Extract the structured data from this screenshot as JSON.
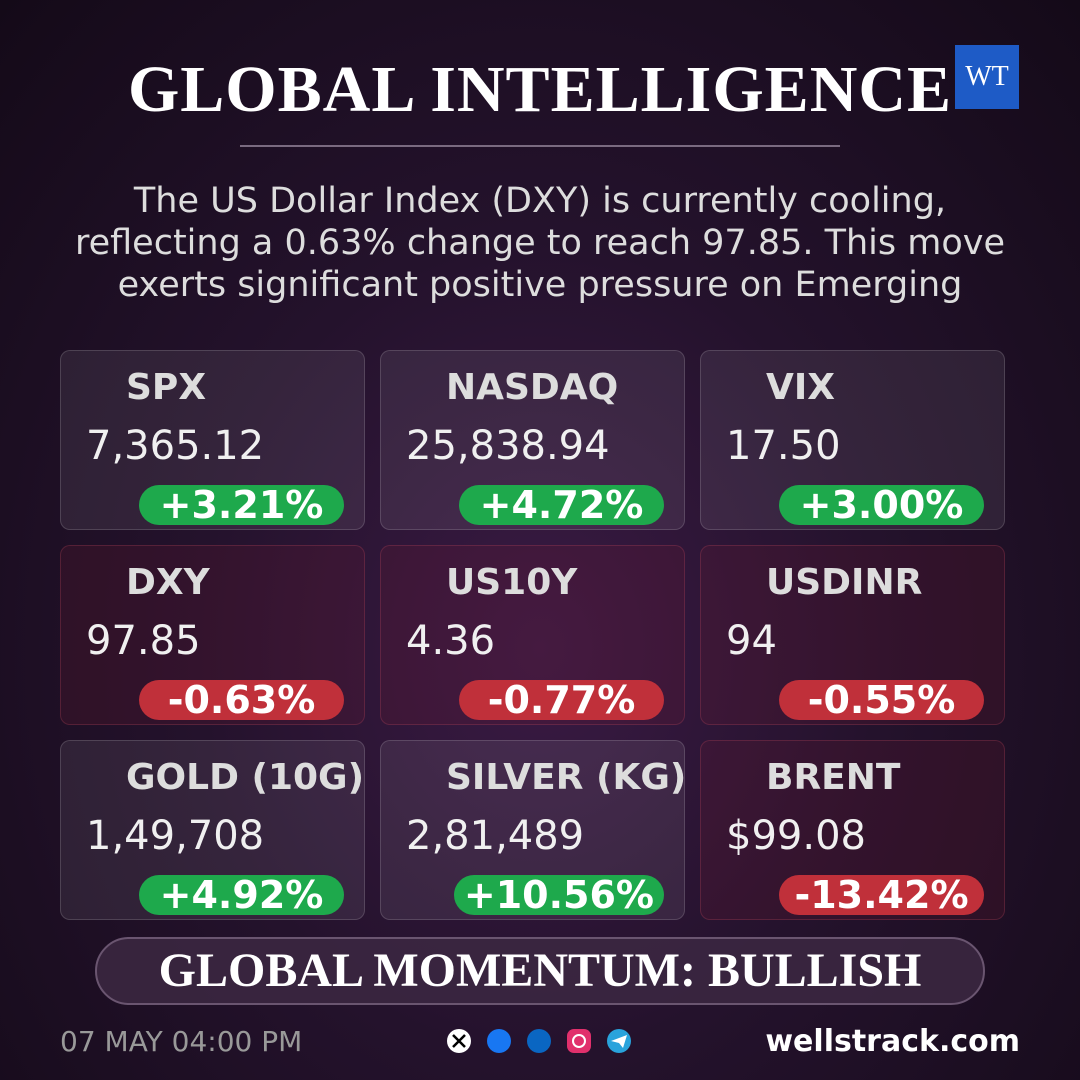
{
  "header": {
    "title": "GLOBAL INTELLIGENCE",
    "logo": "WT"
  },
  "summary": "The US Dollar Index (DXY) is currently cooling, reflecting a 0.63% change to reach 97.85. This move exerts significant positive pressure on Emerging",
  "cards": [
    {
      "name": "SPX",
      "value": "7,365.12",
      "change": "+3.21%"
    },
    {
      "name": "NASDAQ",
      "value": "25,838.94",
      "change": "+4.72%"
    },
    {
      "name": "VIX",
      "value": "17.50",
      "change": "+3.00%"
    },
    {
      "name": "DXY",
      "value": "97.85",
      "change": "-0.63%"
    },
    {
      "name": "US10Y",
      "value": "4.36",
      "change": "-0.77%"
    },
    {
      "name": "USDINR",
      "value": "94",
      "change": "-0.55%"
    },
    {
      "name": "GOLD (10G)",
      "value": "1,49,708",
      "change": "+4.92%"
    },
    {
      "name": "SILVER (KG)",
      "value": "2,81,489",
      "change": "+10.56%"
    },
    {
      "name": "BRENT",
      "value": "$99.08",
      "change": "-13.42%"
    }
  ],
  "banner": "GLOBAL MOMENTUM: BULLISH",
  "footer": {
    "date": "07 MAY 04:00 PM",
    "site": "wellstrack.com"
  }
}
